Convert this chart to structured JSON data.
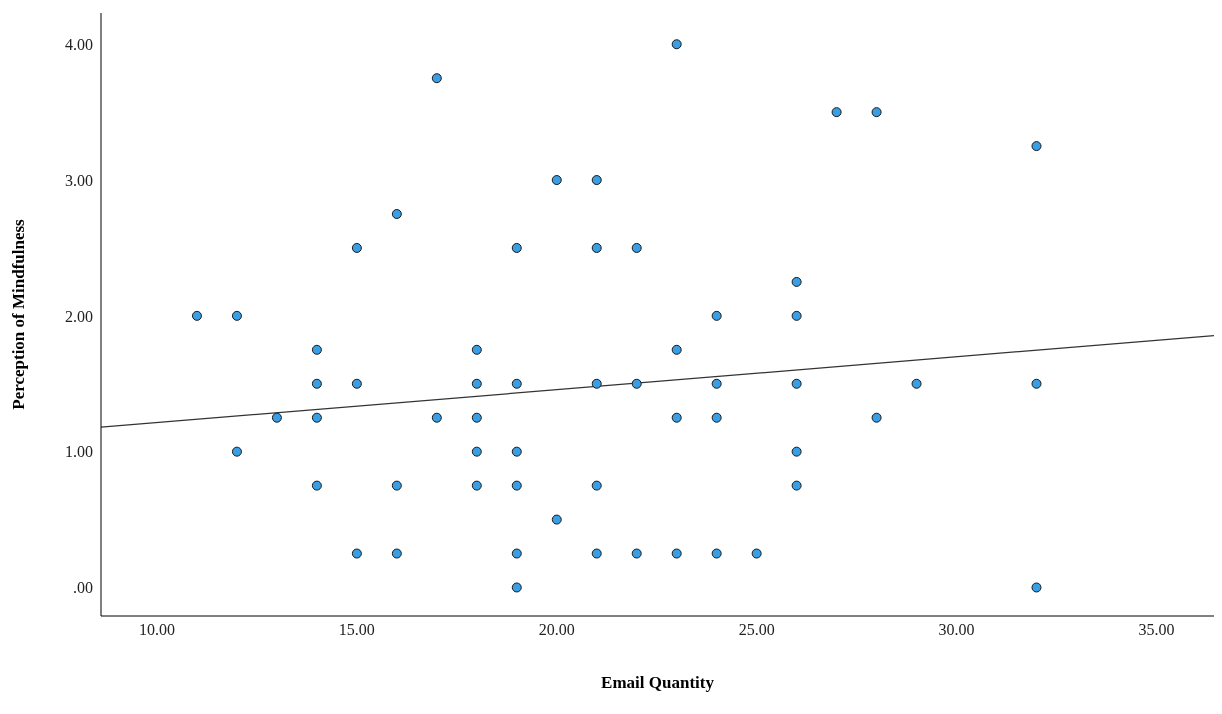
{
  "chart_data": {
    "type": "scatter",
    "xlabel": "Email Quantity",
    "ylabel": "Perception of Mindfulness",
    "xlim": [
      8.6,
      36.44
    ],
    "ylim": [
      -0.21,
      4.23
    ],
    "xticks": [
      {
        "value": 10,
        "label": "10.00"
      },
      {
        "value": 15,
        "label": "15.00"
      },
      {
        "value": 20,
        "label": "20.00"
      },
      {
        "value": 25,
        "label": "25.00"
      },
      {
        "value": 30,
        "label": "30.00"
      },
      {
        "value": 35,
        "label": "35.00"
      }
    ],
    "yticks": [
      {
        "value": 0,
        "label": ".00"
      },
      {
        "value": 1,
        "label": "1.00"
      },
      {
        "value": 2,
        "label": "2.00"
      },
      {
        "value": 3,
        "label": "3.00"
      },
      {
        "value": 4,
        "label": "4.00"
      }
    ],
    "grid": false,
    "legend": false,
    "series": [
      {
        "marker": "circle",
        "color": "#3a9ee4",
        "x": [
          11,
          12,
          12,
          13,
          14,
          14,
          14,
          14,
          15,
          15,
          15,
          16,
          16,
          16,
          17,
          17,
          18,
          18,
          18,
          18,
          18,
          19,
          19,
          19,
          19,
          19,
          19,
          20,
          20,
          21,
          21,
          21,
          21,
          21,
          22,
          22,
          22,
          23,
          23,
          23,
          23,
          24,
          24,
          24,
          24,
          25,
          26,
          26,
          26,
          26,
          26,
          27,
          28,
          28,
          29,
          32,
          32,
          32
        ],
        "values": [
          2,
          2,
          1,
          1.25,
          1.75,
          1.5,
          1.25,
          0.75,
          2.5,
          1.5,
          0.25,
          2.75,
          0.75,
          0.25,
          3.75,
          1.25,
          1.75,
          1.5,
          1.25,
          1,
          0.75,
          2.5,
          1.5,
          1,
          0.75,
          0.25,
          0,
          3,
          0.5,
          3,
          2.5,
          1.5,
          0.75,
          0.25,
          2.5,
          1.5,
          0.25,
          4,
          1.75,
          1.25,
          0.25,
          2,
          1.5,
          1.25,
          0.25,
          0.25,
          2.25,
          2,
          1.5,
          1,
          0.75,
          3.5,
          3.5,
          1.25,
          1.5,
          3.25,
          1.5,
          0
        ]
      },
      {
        "type": "line",
        "marker": "none",
        "color": "#333333",
        "line_style": "solid",
        "x": [
          8.6,
          36.44
        ],
        "values": [
          1.18,
          1.855
        ]
      }
    ]
  }
}
